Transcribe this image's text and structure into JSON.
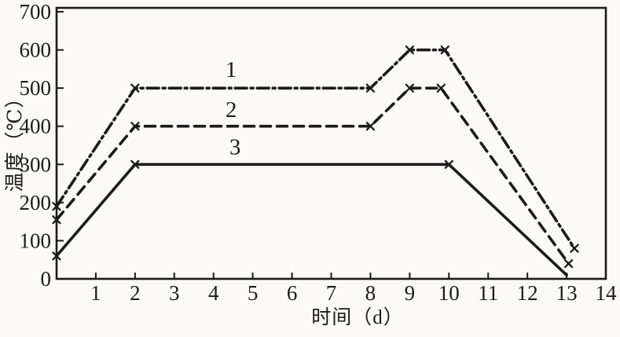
{
  "page": {
    "kind": "scanned line chart",
    "paper_color": "#faf9f5",
    "ink_color": "#1b1b1b"
  },
  "chart_data": {
    "type": "line",
    "title": "",
    "xlabel": "时间（d）",
    "ylabel": "温度（℃）",
    "xlim": [
      0,
      14
    ],
    "ylim": [
      0,
      700
    ],
    "x_ticks": [
      1,
      2,
      3,
      4,
      5,
      6,
      7,
      8,
      9,
      10,
      11,
      12,
      13,
      14
    ],
    "y_ticks": [
      0,
      100,
      200,
      300,
      400,
      500,
      600,
      700
    ],
    "grid": false,
    "frame": true,
    "legend_position": "none",
    "marker_glyph": "x",
    "series": [
      {
        "name": "1",
        "line_style": "dashdot",
        "points": [
          [
            0,
            190
          ],
          [
            2,
            500
          ],
          [
            8,
            500
          ],
          [
            9,
            600
          ],
          [
            9.9,
            600
          ],
          [
            13.2,
            80
          ]
        ],
        "marker_points": [
          [
            0,
            190
          ],
          [
            2,
            500
          ],
          [
            8,
            500
          ],
          [
            9,
            600
          ],
          [
            9.9,
            600
          ],
          [
            13.2,
            80
          ]
        ]
      },
      {
        "name": "2",
        "line_style": "dashed",
        "points": [
          [
            0,
            155
          ],
          [
            2,
            400
          ],
          [
            8,
            400
          ],
          [
            9,
            500
          ],
          [
            9.8,
            500
          ],
          [
            13.05,
            40
          ]
        ],
        "marker_points": [
          [
            0,
            155
          ],
          [
            2,
            400
          ],
          [
            8,
            400
          ],
          [
            9,
            500
          ],
          [
            9.8,
            500
          ],
          [
            13.05,
            40
          ]
        ]
      },
      {
        "name": "3",
        "line_style": "solid",
        "points": [
          [
            0,
            60
          ],
          [
            2,
            300
          ],
          [
            10,
            300
          ],
          [
            13,
            10
          ]
        ],
        "marker_points": [
          [
            0,
            60
          ],
          [
            2,
            300
          ],
          [
            10,
            300
          ]
        ]
      }
    ],
    "curve_labels": [
      {
        "text": "1",
        "x": 4.45,
        "y": 548
      },
      {
        "text": "2",
        "x": 4.45,
        "y": 443
      },
      {
        "text": "3",
        "x": 4.55,
        "y": 345
      }
    ]
  }
}
